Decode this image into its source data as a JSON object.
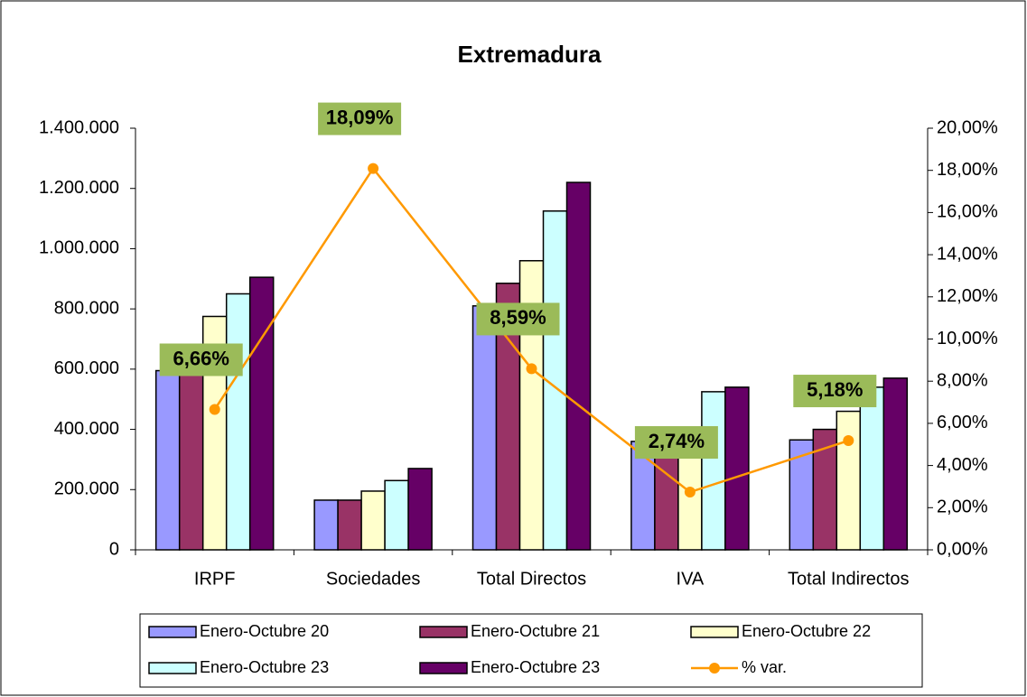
{
  "chart_data": {
    "type": "bar",
    "title": "Extremadura",
    "categories": [
      "IRPF",
      "Sociedades",
      "Total Directos",
      "IVA",
      "Total Indirectos"
    ],
    "series": [
      {
        "name": "Enero-Octubre 20",
        "color": "#9999ff",
        "values": [
          595000,
          165000,
          810000,
          360000,
          365000
        ]
      },
      {
        "name": "Enero-Octubre 21",
        "color": "#993366",
        "values": [
          665000,
          165000,
          885000,
          390000,
          400000
        ]
      },
      {
        "name": "Enero-Octubre 22",
        "color": "#ffffcc",
        "values": [
          775000,
          195000,
          960000,
          405000,
          460000
        ]
      },
      {
        "name": "Enero-Octubre 23",
        "color": "#ccffff",
        "values": [
          850000,
          230000,
          1125000,
          525000,
          540000
        ]
      },
      {
        "name": "Enero-Octubre 23",
        "color": "#660066",
        "values": [
          905000,
          270000,
          1220000,
          540000,
          570000
        ]
      },
      {
        "name": "% var.",
        "type": "line",
        "axis": "y2",
        "color": "#ff9900",
        "values": [
          6.66,
          18.09,
          8.59,
          2.74,
          5.18
        ],
        "value_labels": [
          "6,66%",
          "18,09%",
          "8,59%",
          "2,74%",
          "5,18%"
        ],
        "label_color": "#9bbb59"
      }
    ],
    "ylim": [
      0,
      1400000
    ],
    "yticks": [
      0,
      {
        "value": 200000,
        "label": "200.000"
      },
      {
        "value": 400000,
        "label": "400.000"
      },
      {
        "value": 600000,
        "label": "600.000"
      },
      {
        "value": 800000,
        "label": "800.000"
      },
      {
        "value": 1000000,
        "label": "1.000.000"
      },
      {
        "value": 1200000,
        "label": "1.200.000"
      },
      {
        "value": 1400000,
        "label": "1.400.000"
      }
    ],
    "y2lim": [
      0,
      20
    ],
    "y2ticks": [
      {
        "value": 0,
        "label": "0,00%"
      },
      {
        "value": 2,
        "label": "2,00%"
      },
      {
        "value": 4,
        "label": "4,00%"
      },
      {
        "value": 6,
        "label": "6,00%"
      },
      {
        "value": 8,
        "label": "8,00%"
      },
      {
        "value": 10,
        "label": "10,00%"
      },
      {
        "value": 12,
        "label": "12,00%"
      },
      {
        "value": 14,
        "label": "14,00%"
      },
      {
        "value": 16,
        "label": "16,00%"
      },
      {
        "value": 18,
        "label": "18,00%"
      },
      {
        "value": 20,
        "label": "20,00%"
      }
    ]
  }
}
